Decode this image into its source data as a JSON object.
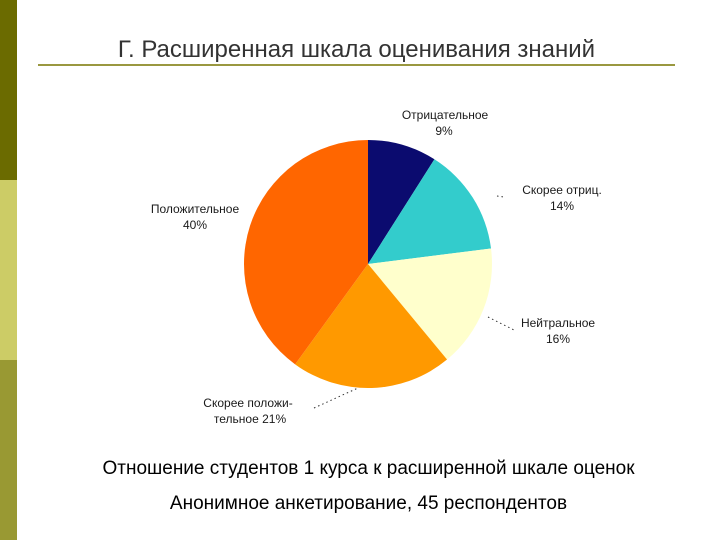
{
  "slide": {
    "title": "Г. Расширенная шкала оценивания знаний",
    "captions": [
      "Отношение студентов 1 курса к расширенной шкале оценок",
      "Анонимное анкетирование, 45 респондентов"
    ]
  },
  "colors": {
    "accent_bar": [
      "#6b6b00",
      "#cccc66",
      "#999933"
    ],
    "title_text": "#333333",
    "title_rule": "#9a9840"
  },
  "chart_data": {
    "type": "pie",
    "slices": [
      {
        "label_lines": [
          "Отрицательное",
          "9%"
        ],
        "value": 9,
        "color": "#0b0b6f"
      },
      {
        "label_lines": [
          "Скорее отриц.",
          "14%"
        ],
        "value": 14,
        "color": "#33cccc"
      },
      {
        "label_lines": [
          "Нейтральное",
          "16%"
        ],
        "value": 16,
        "color": "#ffffcc"
      },
      {
        "label_lines": [
          "Скорее положи-",
          "тельное 21%"
        ],
        "value": 21,
        "color": "#ff9900"
      },
      {
        "label_lines": [
          "Положительное",
          "40%"
        ],
        "value": 40,
        "color": "#ff6600"
      }
    ]
  }
}
